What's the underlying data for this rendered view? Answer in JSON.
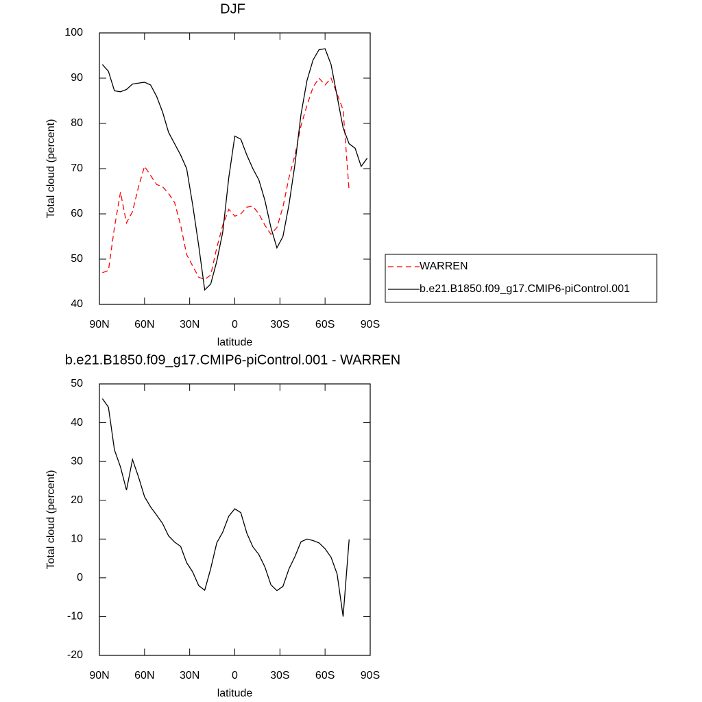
{
  "chart_data": [
    {
      "type": "line",
      "title": "DJF",
      "x_label": "latitude",
      "y_label": "Total cloud (percent)",
      "x": [
        88,
        84,
        80,
        76,
        72,
        68,
        64,
        60,
        56,
        52,
        48,
        44,
        40,
        36,
        32,
        28,
        24,
        20,
        16,
        12,
        8,
        4,
        0,
        -4,
        -8,
        -12,
        -16,
        -20,
        -24,
        -28,
        -32,
        -36,
        -40,
        -44,
        -48,
        -52,
        -56,
        -60,
        -64,
        -68,
        -72,
        -76,
        -80,
        -84,
        -88
      ],
      "series": [
        {
          "name": "WARREN",
          "color": "#ff0000",
          "line_style": "dashed",
          "values": [
            47,
            47.5,
            57,
            64.8,
            58,
            60.5,
            66,
            70.5,
            68.5,
            66.5,
            66,
            64.5,
            62.5,
            57.5,
            51,
            48.5,
            46,
            45.5,
            46.5,
            52.5,
            57.5,
            61,
            59.5,
            60,
            61.5,
            61.7,
            60,
            57.5,
            55.5,
            57,
            61.5,
            68,
            73,
            79.5,
            84,
            88,
            90,
            88.5,
            90,
            86.5,
            83,
            65,
            null,
            null,
            null
          ]
        },
        {
          "name": "b.e21.B1850.f09_g17.CMIP6-piControl.001",
          "color": "#000000",
          "line_style": "solid",
          "values": [
            93,
            91.5,
            87.2,
            87,
            87.5,
            88.7,
            88.9,
            89.1,
            88.5,
            86,
            82.5,
            78,
            75.5,
            73,
            70,
            62,
            53,
            43.2,
            44.5,
            49.5,
            56,
            68,
            77.2,
            76.5,
            73,
            70,
            67.5,
            63,
            57,
            52.5,
            55,
            62,
            71,
            82,
            89.5,
            94,
            96.3,
            96.5,
            93,
            86,
            79,
            75.5,
            74.5,
            70.5,
            72.3
          ]
        }
      ],
      "xlim": [
        90,
        -90
      ],
      "xticks": [
        {
          "value": 90,
          "label": "90N"
        },
        {
          "value": 60,
          "label": "60N"
        },
        {
          "value": 30,
          "label": "30N"
        },
        0,
        {
          "value": -30,
          "label": "30S"
        },
        {
          "value": -60,
          "label": "60S"
        },
        {
          "value": -90,
          "label": "90S"
        }
      ],
      "ylim": [
        40,
        100
      ],
      "yticks": [
        40,
        50,
        60,
        70,
        80,
        90,
        100
      ],
      "legend": "right"
    },
    {
      "type": "line",
      "title": "b.e21.B1850.f09_g17.CMIP6-piControl.001 - WARREN",
      "x_label": "latitude",
      "y_label": "Total cloud (percent)",
      "x": [
        88,
        84,
        80,
        76,
        72,
        68,
        64,
        60,
        56,
        52,
        48,
        44,
        40,
        36,
        32,
        28,
        24,
        20,
        16,
        12,
        8,
        4,
        0,
        -4,
        -8,
        -12,
        -16,
        -20,
        -24,
        -28,
        -32,
        -36,
        -40,
        -44,
        -48,
        -52,
        -56,
        -60,
        -64,
        -68,
        -72,
        -76,
        -80,
        -84,
        -88
      ],
      "series": [
        {
          "color": "#000000",
          "line_style": "solid",
          "values": [
            46.2,
            44,
            33,
            28.6,
            22.6,
            30.5,
            26,
            20.9,
            18.3,
            16.2,
            14,
            10.8,
            9.2,
            8.1,
            3.9,
            1.5,
            -2,
            -3.2,
            2.4,
            9,
            11.8,
            15.9,
            17.8,
            16.8,
            11.5,
            8,
            6,
            2.8,
            -1.8,
            -3.3,
            -2.2,
            2.3,
            5.5,
            9.3,
            10,
            9.6,
            9,
            7.5,
            5.3,
            1,
            -10,
            9.9,
            null,
            null,
            null
          ]
        }
      ],
      "xlim": [
        90,
        -90
      ],
      "xticks": [
        {
          "value": 90,
          "label": "90N"
        },
        {
          "value": 60,
          "label": "60N"
        },
        {
          "value": 30,
          "label": "30N"
        },
        0,
        {
          "value": -30,
          "label": "30S"
        },
        {
          "value": -60,
          "label": "60S"
        },
        {
          "value": -90,
          "label": "90S"
        }
      ],
      "ylim": [
        -20,
        50
      ],
      "yticks": [
        -20,
        -10,
        0,
        10,
        20,
        30,
        40,
        50
      ]
    }
  ]
}
